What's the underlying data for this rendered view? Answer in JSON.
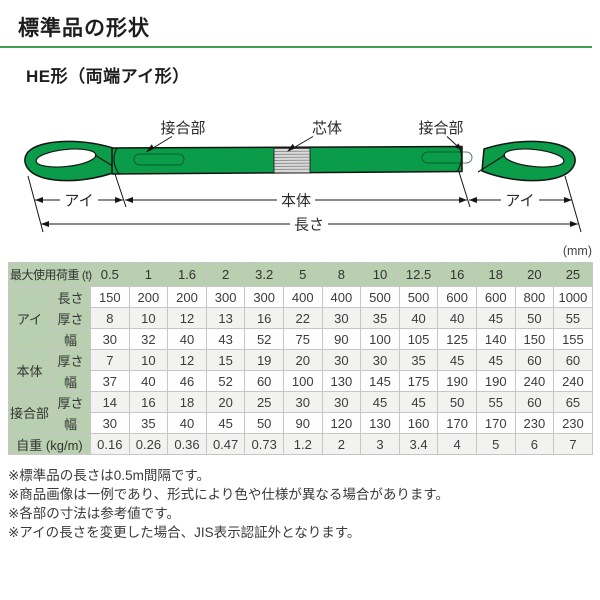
{
  "page": {
    "title": "標準品の形状",
    "subtitle": "HE形（両端アイ形）",
    "unit_label": "(mm)"
  },
  "diagram": {
    "joint_left": "接合部",
    "core": "芯体",
    "joint_right": "接合部",
    "eye_left": "アイ",
    "body": "本体",
    "eye_right": "アイ",
    "length": "長さ",
    "colors": {
      "sling_green": "#0a9c49",
      "core_gray": "#d9d9d9",
      "outline": "#141414"
    }
  },
  "table": {
    "header": {
      "label": "最大使用荷重 (t)",
      "capacities": [
        "0.5",
        "1",
        "1.6",
        "2",
        "3.2",
        "5",
        "8",
        "10",
        "12.5",
        "16",
        "18",
        "20",
        "25"
      ]
    },
    "rows": [
      {
        "group": "アイ",
        "group_rowspan": 3,
        "sub": "長さ",
        "values": [
          "150",
          "200",
          "200",
          "300",
          "300",
          "400",
          "400",
          "500",
          "500",
          "600",
          "600",
          "800",
          "1000"
        ]
      },
      {
        "sub": "厚さ",
        "values": [
          "8",
          "10",
          "12",
          "13",
          "16",
          "22",
          "30",
          "35",
          "40",
          "40",
          "45",
          "50",
          "55"
        ]
      },
      {
        "sub": "幅",
        "values": [
          "30",
          "32",
          "40",
          "43",
          "52",
          "75",
          "90",
          "100",
          "105",
          "125",
          "140",
          "150",
          "155"
        ]
      },
      {
        "group": "本体",
        "group_rowspan": 2,
        "sub": "厚さ",
        "values": [
          "7",
          "10",
          "12",
          "15",
          "19",
          "20",
          "30",
          "30",
          "35",
          "45",
          "45",
          "60",
          "60"
        ]
      },
      {
        "sub": "幅",
        "values": [
          "37",
          "40",
          "46",
          "52",
          "60",
          "100",
          "130",
          "145",
          "175",
          "190",
          "190",
          "240",
          "240"
        ]
      },
      {
        "group": "接合部",
        "group_rowspan": 2,
        "sub": "厚さ",
        "values": [
          "14",
          "16",
          "18",
          "20",
          "25",
          "30",
          "30",
          "45",
          "45",
          "50",
          "55",
          "60",
          "65"
        ]
      },
      {
        "sub": "幅",
        "values": [
          "30",
          "35",
          "40",
          "45",
          "50",
          "90",
          "120",
          "130",
          "160",
          "170",
          "170",
          "230",
          "230"
        ]
      },
      {
        "label": "自重 (kg/m)",
        "values": [
          "0.16",
          "0.26",
          "0.36",
          "0.47",
          "0.73",
          "1.2",
          "2",
          "3",
          "3.4",
          "4",
          "5",
          "6",
          "7"
        ]
      }
    ]
  },
  "notes": [
    "※標準品の長さは0.5m間隔です。",
    "※商品画像は一例であり、形式により色や仕様が異なる場合があります。",
    "※各部の寸法は参考値です。",
    "※アイの長さを変更した場合、JIS表示認証外となります。"
  ]
}
